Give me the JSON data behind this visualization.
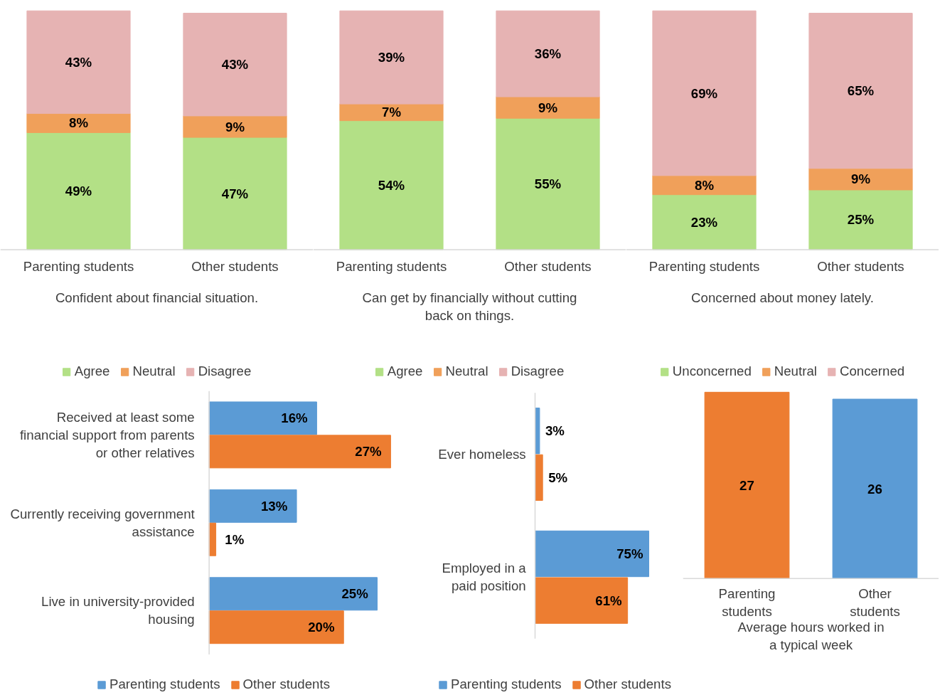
{
  "chart_data": [
    {
      "type": "bar",
      "stacked": true,
      "categories": [
        "Parenting students",
        "Other students"
      ],
      "xlabel": "Confident about financial situation.",
      "tick_labels": "x",
      "grid": false,
      "legend": "bottom",
      "series": [
        {
          "name": "Agree",
          "color": "#b3e086",
          "values": [
            49,
            47
          ],
          "value_labels": [
            "49%",
            "47%"
          ]
        },
        {
          "name": "Neutral",
          "color": "#f0a05a",
          "values": [
            8,
            9
          ],
          "value_labels": [
            "8%",
            "9%"
          ]
        },
        {
          "name": "Disagree",
          "color": "#e6b3b3",
          "values": [
            43,
            43
          ],
          "value_labels": [
            "43%",
            "43%"
          ]
        }
      ]
    },
    {
      "type": "bar",
      "stacked": true,
      "categories": [
        "Parenting students",
        "Other students"
      ],
      "xlabel": "Can get by financially without cutting back on things.",
      "tick_labels": "x",
      "grid": false,
      "legend": "bottom",
      "series": [
        {
          "name": "Agree",
          "color": "#b3e086",
          "values": [
            54,
            55
          ],
          "value_labels": [
            "54%",
            "55%"
          ]
        },
        {
          "name": "Neutral",
          "color": "#f0a05a",
          "values": [
            7,
            9
          ],
          "value_labels": [
            "7%",
            "9%"
          ]
        },
        {
          "name": "Disagree",
          "color": "#e6b3b3",
          "values": [
            39,
            36
          ],
          "value_labels": [
            "39%",
            "36%"
          ]
        }
      ]
    },
    {
      "type": "bar",
      "stacked": true,
      "categories": [
        "Parenting students",
        "Other students"
      ],
      "xlabel": "Concerned about money lately.",
      "tick_labels": "x",
      "grid": false,
      "legend": "bottom",
      "series": [
        {
          "name": "Unconcerned",
          "color": "#b3e086",
          "values": [
            23,
            25
          ],
          "value_labels": [
            "23%",
            "25%"
          ]
        },
        {
          "name": "Neutral",
          "color": "#f0a05a",
          "values": [
            8,
            9
          ],
          "value_labels": [
            "8%",
            "9%"
          ]
        },
        {
          "name": "Concerned",
          "color": "#e6b3b3",
          "values": [
            69,
            65
          ],
          "value_labels": [
            "69%",
            "65%"
          ]
        }
      ]
    },
    {
      "type": "bar",
      "orientation": "horizontal",
      "categories": [
        "Received at least some financial support from parents or other relatives",
        "Currently receiving government assistance",
        "Live in university-provided housing"
      ],
      "tick_labels": "y",
      "grid": false,
      "legend": "bottom",
      "series": [
        {
          "name": "Parenting students",
          "color": "#5b9bd5",
          "values": [
            16,
            13,
            25
          ],
          "value_labels": [
            "16%",
            "13%",
            "25%"
          ]
        },
        {
          "name": "Other students",
          "color": "#ed7d31",
          "values": [
            27,
            1,
            20
          ],
          "value_labels": [
            "27%",
            "1%",
            "20%"
          ]
        }
      ]
    },
    {
      "type": "bar",
      "orientation": "horizontal",
      "categories": [
        "Ever homeless",
        "Employed in a paid position"
      ],
      "tick_labels": "y",
      "grid": false,
      "legend": "bottom",
      "series": [
        {
          "name": "Parenting students",
          "color": "#5b9bd5",
          "values": [
            3,
            75
          ],
          "value_labels": [
            "3%",
            "75%"
          ]
        },
        {
          "name": "Other students",
          "color": "#ed7d31",
          "values": [
            5,
            61
          ],
          "value_labels": [
            "5%",
            "61%"
          ]
        }
      ]
    },
    {
      "type": "bar",
      "categories": [
        "Parenting students",
        "Other students"
      ],
      "values": [
        27,
        26
      ],
      "colors": [
        "#ed7d31",
        "#5b9bd5"
      ],
      "data_labels": true,
      "xlabel": "Average hours worked in a typical week",
      "tick_labels": "x",
      "grid": false
    }
  ]
}
